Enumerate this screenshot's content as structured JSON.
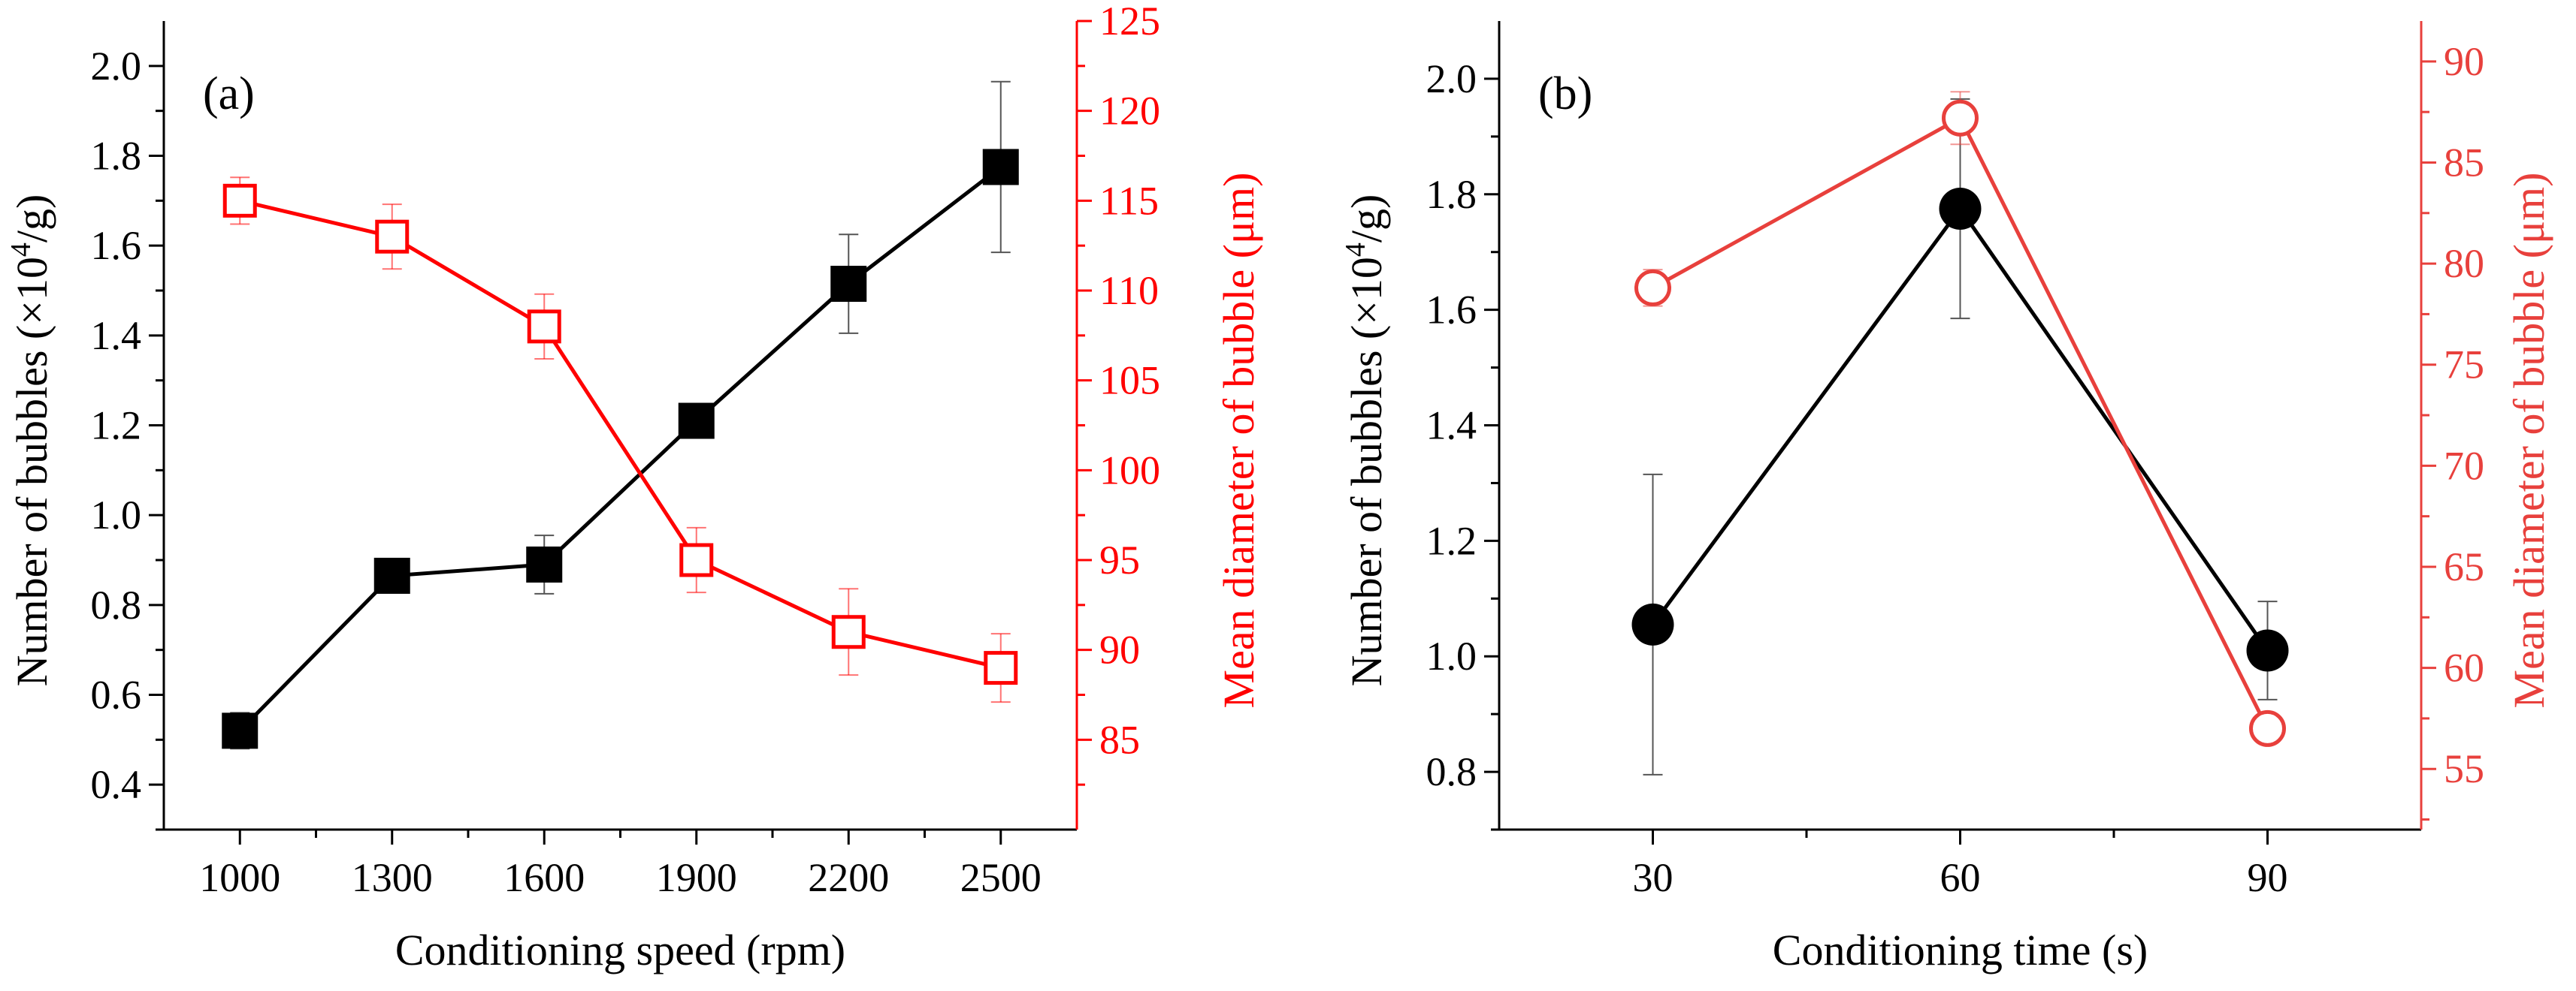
{
  "chart_data": [
    {
      "type": "line",
      "panel_label": "(a)",
      "xlabel": "Conditioning speed (rpm)",
      "x_ticks": [
        "1000",
        "1300",
        "1600",
        "1900",
        "2200",
        "2500"
      ],
      "x_values": [
        1000,
        1300,
        1600,
        1900,
        2200,
        2500
      ],
      "xlim": [
        850,
        2650
      ],
      "left_axis": {
        "label_prefix": "Number of bubbles (×10",
        "label_exp": "4",
        "label_suffix": "/g)",
        "ylim": [
          0.3,
          2.1
        ],
        "ticks": [
          "0.4",
          "0.6",
          "0.8",
          "1.0",
          "1.2",
          "1.4",
          "1.6",
          "1.8",
          "2.0"
        ],
        "color": "#000000"
      },
      "right_axis": {
        "label": "Mean diameter of bubble (μm)",
        "ylim": [
          80,
          125
        ],
        "ticks": [
          "85",
          "90",
          "95",
          "100",
          "105",
          "110",
          "115",
          "120",
          "125"
        ],
        "color": "#ff0000"
      },
      "series": [
        {
          "name": "Number of bubbles",
          "axis": "left",
          "marker": "filled-square",
          "color": "#000000",
          "values": [
            0.52,
            0.865,
            0.89,
            1.21,
            1.515,
            1.775
          ],
          "errors": [
            0.04,
            0.035,
            0.065,
            0.03,
            0.11,
            0.19
          ]
        },
        {
          "name": "Mean diameter of bubble",
          "axis": "right",
          "marker": "open-square",
          "color": "#ff0000",
          "values": [
            115,
            113,
            108,
            95,
            91,
            89
          ],
          "errors": [
            1.3,
            1.8,
            1.8,
            1.8,
            2.4,
            1.9
          ]
        }
      ]
    },
    {
      "type": "line",
      "panel_label": "(b)",
      "xlabel": "Conditioning time (s)",
      "x_ticks": [
        "30",
        "60",
        "90"
      ],
      "x_values": [
        30,
        60,
        90
      ],
      "xlim": [
        15,
        105
      ],
      "left_axis": {
        "label_prefix": "Number of bubbles (×10",
        "label_exp": "4",
        "label_suffix": "/g)",
        "ylim": [
          0.7,
          2.1
        ],
        "ticks": [
          "0.8",
          "1.0",
          "1.2",
          "1.4",
          "1.6",
          "1.8",
          "2.0"
        ],
        "color": "#000000"
      },
      "right_axis": {
        "label": "Mean diameter of bubble (μm)",
        "ylim": [
          52,
          92
        ],
        "ticks": [
          "55",
          "60",
          "65",
          "70",
          "75",
          "80",
          "85",
          "90"
        ],
        "color": "#e8403c"
      },
      "series": [
        {
          "name": "Number of bubbles",
          "axis": "left",
          "marker": "filled-circle",
          "color": "#000000",
          "values": [
            1.055,
            1.775,
            1.01
          ],
          "errors": [
            0.26,
            0.19,
            0.085
          ]
        },
        {
          "name": "Mean diameter of bubble",
          "axis": "right",
          "marker": "open-circle",
          "color": "#e8403c",
          "values": [
            78.8,
            87.2,
            57.0
          ],
          "errors": [
            0.9,
            1.3,
            0.7
          ]
        }
      ]
    }
  ]
}
